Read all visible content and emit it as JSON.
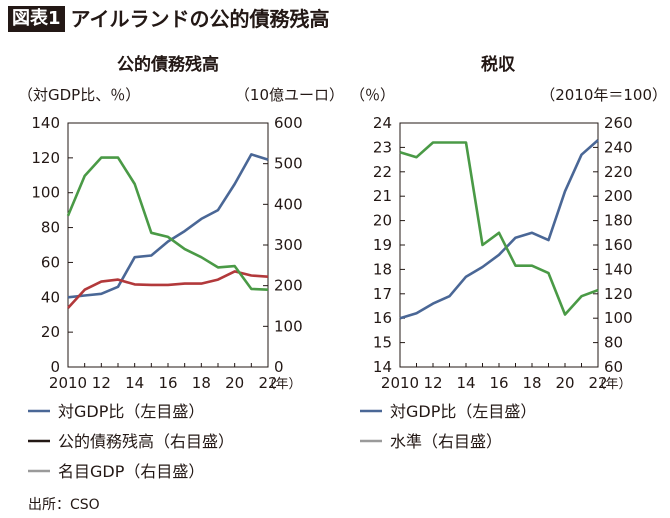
{
  "header": {
    "badge": "図表1",
    "title": "アイルランドの公的債務残高"
  },
  "source": "出所：CSO",
  "colors": {
    "blue": "#4a6796",
    "green": "#4a9a46",
    "red": "#b2393b",
    "gray": "#9a9a9a",
    "black": "#231815"
  },
  "chart_data": [
    {
      "type": "line",
      "title": "公的債務残高",
      "ylabel": "（対GDP比、％）",
      "y2label": "（10億ユーロ）",
      "x_unit_label": "（年）",
      "x": [
        2010,
        2011,
        2012,
        2013,
        2014,
        2015,
        2016,
        2017,
        2018,
        2019,
        2020,
        2021,
        2022
      ],
      "xticks": [
        2010,
        2012,
        2014,
        2016,
        2018,
        2020,
        2022
      ],
      "xtick_labels": [
        "2010",
        "12",
        "14",
        "16",
        "18",
        "20",
        "22"
      ],
      "ylim": [
        0,
        140
      ],
      "yticks": [
        0,
        20,
        40,
        60,
        80,
        100,
        120,
        140
      ],
      "y2lim": [
        0,
        600
      ],
      "y2ticks": [
        0,
        100,
        200,
        300,
        400,
        500,
        600
      ],
      "series": [
        {
          "name": "対GDP比（左目盛）",
          "axis": "left",
          "color": "#4a6796",
          "values": [
            40,
            41,
            42,
            46,
            63,
            64,
            72,
            78,
            85,
            90,
            105,
            122,
            119
          ]
        },
        {
          "name": "公的債務残高（右目盛）",
          "axis": "right",
          "color": "#b2393b",
          "values": [
            145,
            190,
            210,
            215,
            203,
            202,
            202,
            205,
            205,
            215,
            235,
            225,
            222
          ]
        },
        {
          "name": "名目GDP（右目盛）",
          "axis": "right",
          "color": "#4a9a46",
          "values": [
            372,
            470,
            515,
            515,
            450,
            330,
            320,
            290,
            270,
            245,
            248,
            192,
            190
          ]
        }
      ],
      "legend": [
        {
          "label": "対GDP比（左目盛）",
          "color": "#4a6796"
        },
        {
          "label": "公的債務残高（右目盛）",
          "color": "#231815"
        },
        {
          "label": "名目GDP（右目盛）",
          "color": "#9a9a9a"
        }
      ]
    },
    {
      "type": "line",
      "title": "税収",
      "ylabel": "（％）",
      "y2label": "（2010年＝100）",
      "x_unit_label": "（年）",
      "x": [
        2010,
        2011,
        2012,
        2013,
        2014,
        2015,
        2016,
        2017,
        2018,
        2019,
        2020,
        2021,
        2022
      ],
      "xticks": [
        2010,
        2012,
        2014,
        2016,
        2018,
        2020,
        2022
      ],
      "xtick_labels": [
        "2010",
        "12",
        "14",
        "16",
        "18",
        "20",
        "22"
      ],
      "ylim": [
        14,
        24
      ],
      "yticks": [
        14,
        15,
        16,
        17,
        18,
        19,
        20,
        21,
        22,
        23,
        24
      ],
      "y2lim": [
        60,
        260
      ],
      "y2ticks": [
        60,
        80,
        100,
        120,
        140,
        160,
        180,
        200,
        220,
        240,
        260
      ],
      "series": [
        {
          "name": "対GDP比（左目盛）",
          "axis": "left",
          "color": "#4a6796",
          "values": [
            16.0,
            16.2,
            16.6,
            16.9,
            17.7,
            18.1,
            18.6,
            19.3,
            19.5,
            19.2,
            21.2,
            22.7,
            23.3
          ]
        },
        {
          "name": "水準（右目盛）",
          "axis": "right",
          "color": "#4a9a46",
          "values": [
            236,
            232,
            244,
            244,
            244,
            160,
            170,
            143,
            143,
            137,
            103,
            118,
            123
          ]
        }
      ],
      "legend": [
        {
          "label": "対GDP比（左目盛）",
          "color": "#4a6796"
        },
        {
          "label": "水準（右目盛）",
          "color": "#9a9a9a"
        }
      ]
    }
  ]
}
